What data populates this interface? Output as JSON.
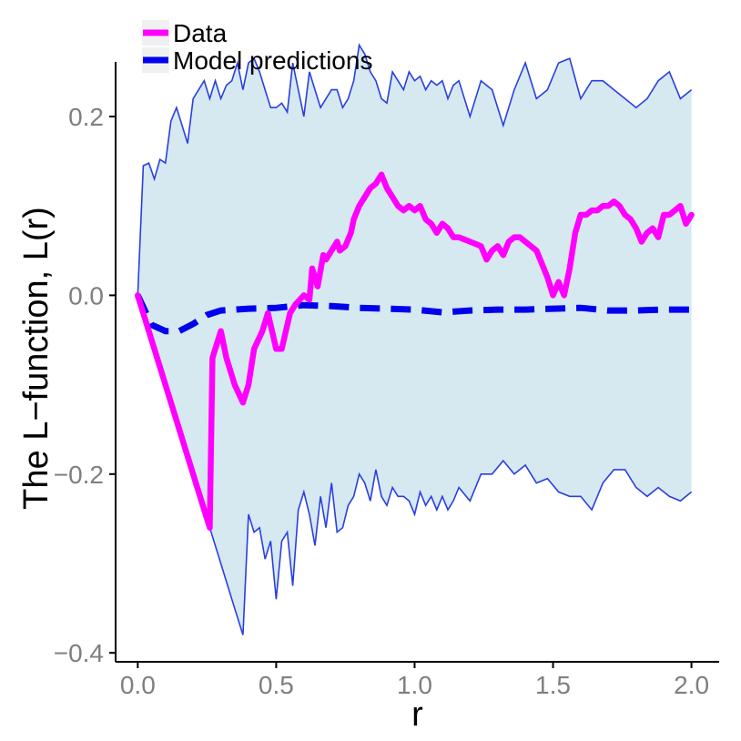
{
  "chart_data": {
    "type": "line",
    "title": "",
    "xlabel": "r",
    "ylabel": "The L−function, L(r)",
    "xlim": [
      -0.08,
      2.1
    ],
    "ylim": [
      -0.41,
      0.31
    ],
    "x_ticks": [
      0.0,
      0.5,
      1.0,
      1.5,
      2.0
    ],
    "x_tick_labels": [
      "0.0",
      "0.5",
      "1.0",
      "1.5",
      "2.0"
    ],
    "y_ticks": [
      -0.4,
      -0.2,
      0.0,
      0.2
    ],
    "y_tick_labels": [
      "−0.4",
      "−0.2",
      "0.0",
      "0.2"
    ],
    "grid": false,
    "legend_position": "top-left",
    "colors": {
      "data": "#ff00ff",
      "model": "#0000ee",
      "envelope_fill": "#d6e9f0",
      "envelope_line": "#2a3fe0",
      "axis": "#000000",
      "tick_text": "#7f7f7f"
    },
    "series": [
      {
        "name": "Data",
        "style": "solid",
        "x": [
          0.0,
          0.26,
          0.27,
          0.3,
          0.32,
          0.35,
          0.38,
          0.4,
          0.42,
          0.45,
          0.47,
          0.5,
          0.52,
          0.55,
          0.57,
          0.6,
          0.62,
          0.63,
          0.65,
          0.67,
          0.68,
          0.7,
          0.72,
          0.73,
          0.75,
          0.77,
          0.78,
          0.8,
          0.82,
          0.84,
          0.86,
          0.88,
          0.9,
          0.92,
          0.94,
          0.96,
          0.98,
          1.0,
          1.02,
          1.04,
          1.06,
          1.08,
          1.1,
          1.12,
          1.14,
          1.16,
          1.2,
          1.24,
          1.26,
          1.28,
          1.3,
          1.32,
          1.34,
          1.36,
          1.38,
          1.4,
          1.42,
          1.44,
          1.46,
          1.48,
          1.5,
          1.52,
          1.54,
          1.56,
          1.58,
          1.6,
          1.62,
          1.64,
          1.66,
          1.68,
          1.7,
          1.72,
          1.74,
          1.76,
          1.78,
          1.8,
          1.82,
          1.84,
          1.86,
          1.88,
          1.9,
          1.92,
          1.94,
          1.96,
          1.98,
          2.0
        ],
        "y": [
          0.0,
          -0.26,
          -0.07,
          -0.04,
          -0.07,
          -0.1,
          -0.12,
          -0.1,
          -0.06,
          -0.04,
          -0.02,
          -0.06,
          -0.06,
          -0.02,
          -0.01,
          0.0,
          -0.005,
          0.03,
          0.01,
          0.045,
          0.04,
          0.05,
          0.06,
          0.05,
          0.055,
          0.07,
          0.085,
          0.1,
          0.11,
          0.12,
          0.125,
          0.135,
          0.12,
          0.11,
          0.1,
          0.095,
          0.1,
          0.095,
          0.1,
          0.085,
          0.08,
          0.07,
          0.08,
          0.075,
          0.065,
          0.065,
          0.06,
          0.055,
          0.04,
          0.05,
          0.055,
          0.045,
          0.06,
          0.065,
          0.065,
          0.06,
          0.055,
          0.05,
          0.035,
          0.02,
          0.0,
          0.015,
          0.0,
          0.03,
          0.07,
          0.09,
          0.09,
          0.095,
          0.095,
          0.1,
          0.1,
          0.105,
          0.1,
          0.09,
          0.085,
          0.075,
          0.06,
          0.07,
          0.075,
          0.065,
          0.09,
          0.09,
          0.095,
          0.1,
          0.08,
          0.09
        ]
      },
      {
        "name": "Model predictions",
        "style": "dashed",
        "x": [
          0.0,
          0.05,
          0.1,
          0.15,
          0.2,
          0.25,
          0.3,
          0.4,
          0.5,
          0.6,
          0.7,
          0.8,
          0.9,
          1.0,
          1.1,
          1.2,
          1.3,
          1.4,
          1.5,
          1.6,
          1.7,
          1.8,
          1.9,
          2.0
        ],
        "y": [
          0.0,
          -0.033,
          -0.04,
          -0.04,
          -0.032,
          -0.022,
          -0.017,
          -0.015,
          -0.014,
          -0.011,
          -0.012,
          -0.014,
          -0.015,
          -0.016,
          -0.019,
          -0.017,
          -0.016,
          -0.016,
          -0.015,
          -0.014,
          -0.017,
          -0.017,
          -0.016,
          -0.016
        ]
      }
    ],
    "envelope": {
      "upper": {
        "x": [
          0.0,
          0.02,
          0.04,
          0.06,
          0.08,
          0.1,
          0.12,
          0.14,
          0.16,
          0.18,
          0.2,
          0.22,
          0.24,
          0.26,
          0.28,
          0.3,
          0.32,
          0.34,
          0.36,
          0.38,
          0.4,
          0.42,
          0.44,
          0.46,
          0.48,
          0.5,
          0.52,
          0.54,
          0.56,
          0.58,
          0.6,
          0.62,
          0.64,
          0.66,
          0.68,
          0.7,
          0.72,
          0.74,
          0.76,
          0.78,
          0.8,
          0.82,
          0.84,
          0.86,
          0.88,
          0.9,
          0.92,
          0.94,
          0.96,
          0.98,
          1.0,
          1.02,
          1.04,
          1.06,
          1.08,
          1.1,
          1.12,
          1.14,
          1.16,
          1.2,
          1.24,
          1.28,
          1.32,
          1.36,
          1.4,
          1.44,
          1.48,
          1.52,
          1.56,
          1.6,
          1.64,
          1.68,
          1.72,
          1.76,
          1.8,
          1.84,
          1.88,
          1.92,
          1.96,
          2.0
        ],
        "y": [
          0.0,
          0.145,
          0.148,
          0.13,
          0.152,
          0.148,
          0.195,
          0.21,
          0.19,
          0.17,
          0.22,
          0.23,
          0.24,
          0.22,
          0.24,
          0.22,
          0.235,
          0.24,
          0.26,
          0.23,
          0.26,
          0.265,
          0.25,
          0.23,
          0.21,
          0.21,
          0.215,
          0.205,
          0.26,
          0.23,
          0.2,
          0.25,
          0.23,
          0.21,
          0.22,
          0.23,
          0.23,
          0.21,
          0.22,
          0.24,
          0.28,
          0.27,
          0.25,
          0.24,
          0.22,
          0.215,
          0.25,
          0.24,
          0.23,
          0.25,
          0.24,
          0.245,
          0.23,
          0.24,
          0.235,
          0.24,
          0.22,
          0.235,
          0.24,
          0.2,
          0.24,
          0.23,
          0.19,
          0.23,
          0.26,
          0.22,
          0.23,
          0.26,
          0.265,
          0.22,
          0.24,
          0.24,
          0.23,
          0.22,
          0.21,
          0.22,
          0.24,
          0.25,
          0.22,
          0.23
        ]
      },
      "lower": {
        "x": [
          0.0,
          0.26,
          0.3,
          0.34,
          0.38,
          0.4,
          0.42,
          0.44,
          0.46,
          0.48,
          0.5,
          0.52,
          0.54,
          0.56,
          0.58,
          0.6,
          0.62,
          0.64,
          0.66,
          0.68,
          0.7,
          0.72,
          0.74,
          0.76,
          0.78,
          0.8,
          0.82,
          0.84,
          0.86,
          0.88,
          0.9,
          0.92,
          0.94,
          0.96,
          0.98,
          1.0,
          1.02,
          1.04,
          1.06,
          1.08,
          1.1,
          1.12,
          1.14,
          1.16,
          1.2,
          1.24,
          1.28,
          1.32,
          1.36,
          1.4,
          1.44,
          1.48,
          1.52,
          1.56,
          1.6,
          1.64,
          1.68,
          1.72,
          1.76,
          1.8,
          1.84,
          1.88,
          1.92,
          1.96,
          2.0
        ],
        "y": [
          0.0,
          -0.26,
          -0.3,
          -0.34,
          -0.38,
          -0.245,
          -0.265,
          -0.26,
          -0.295,
          -0.275,
          -0.34,
          -0.275,
          -0.265,
          -0.325,
          -0.24,
          -0.22,
          -0.245,
          -0.28,
          -0.225,
          -0.26,
          -0.21,
          -0.265,
          -0.26,
          -0.235,
          -0.225,
          -0.2,
          -0.21,
          -0.23,
          -0.195,
          -0.225,
          -0.235,
          -0.215,
          -0.225,
          -0.225,
          -0.23,
          -0.245,
          -0.22,
          -0.235,
          -0.225,
          -0.24,
          -0.225,
          -0.24,
          -0.23,
          -0.215,
          -0.23,
          -0.2,
          -0.2,
          -0.185,
          -0.2,
          -0.19,
          -0.21,
          -0.205,
          -0.22,
          -0.225,
          -0.225,
          -0.24,
          -0.21,
          -0.195,
          -0.195,
          -0.215,
          -0.225,
          -0.215,
          -0.225,
          -0.23,
          -0.22
        ]
      }
    }
  }
}
